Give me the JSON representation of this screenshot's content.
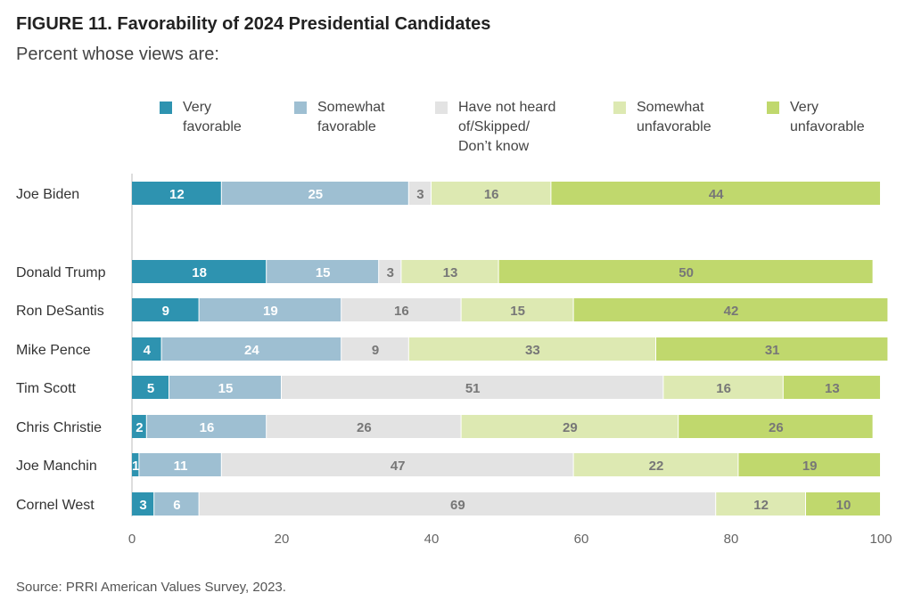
{
  "title": "FIGURE 11.  Favorability of 2024 Presidential Candidates",
  "subtitle": "Percent whose views are:",
  "source": "Source: PRRI American Values Survey, 2023.",
  "chart_data": {
    "type": "bar",
    "orientation": "horizontal",
    "stacked": true,
    "title": "FIGURE 11.  Favorability of 2024 Presidential Candidates",
    "subtitle": "Percent whose views are:",
    "xlim": [
      0,
      100
    ],
    "xticks": [
      0,
      20,
      40,
      60,
      80,
      100
    ],
    "legend_position": "top",
    "categories": [
      "Joe Biden",
      "Donald Trump",
      "Ron DeSantis",
      "Mike Pence",
      "Tim Scott",
      "Chris Christie",
      "Joe Manchin",
      "Cornel West"
    ],
    "series": [
      {
        "name": "Very\nfavorable",
        "color": "#2e93b0",
        "label_color": "#ffffff",
        "values": [
          12,
          18,
          9,
          4,
          5,
          2,
          1,
          3
        ]
      },
      {
        "name": "Somewhat\nfavorable",
        "color": "#9ebfd2",
        "label_color": "#ffffff",
        "values": [
          25,
          15,
          19,
          24,
          15,
          16,
          11,
          6
        ]
      },
      {
        "name": "Have not heard\nof/Skipped/\nDon’t know",
        "color": "#e3e3e3",
        "label_color": "#777777",
        "values": [
          3,
          3,
          16,
          9,
          51,
          26,
          47,
          69
        ]
      },
      {
        "name": "Somewhat\nunfavorable",
        "color": "#dde9b2",
        "label_color": "#777777",
        "values": [
          16,
          13,
          15,
          33,
          16,
          29,
          22,
          12
        ]
      },
      {
        "name": "Very\nunfavorable",
        "color": "#c0d86d",
        "label_color": "#777777",
        "values": [
          44,
          50,
          42,
          31,
          13,
          26,
          19,
          10
        ]
      }
    ],
    "grid": false
  }
}
